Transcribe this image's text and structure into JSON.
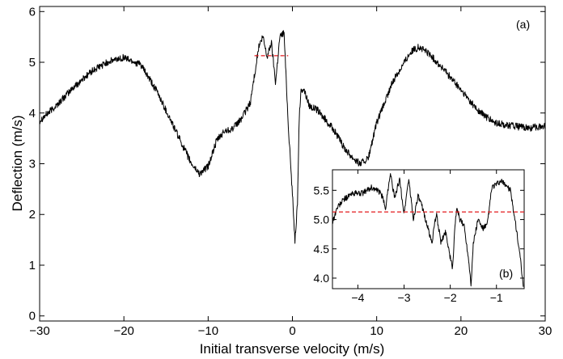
{
  "chart_data": [
    {
      "panel": "main",
      "type": "line",
      "label": "(a)",
      "xlabel": "Initial transverse velocity (m/s)",
      "ylabel": "Deflection (m/s)",
      "xlim": [
        -30,
        30
      ],
      "ylim": [
        -0.1,
        6.1
      ],
      "xticks": [
        -30,
        -20,
        -10,
        0,
        10,
        20,
        30
      ],
      "yticks": [
        0,
        1,
        2,
        3,
        4,
        5,
        6
      ],
      "grid": false,
      "noise": 0.07,
      "reference_line": {
        "y": 5.13,
        "x_range": [
          -4.5,
          -0.5
        ],
        "color": "#e31a1c",
        "style": "dashed"
      },
      "x": [
        -30,
        -28,
        -26,
        -24,
        -22,
        -20,
        -18,
        -16,
        -14,
        -12,
        -11,
        -10,
        -9,
        -8,
        -7,
        -6,
        -5,
        -4,
        -3.5,
        -3,
        -2.5,
        -2,
        -1.5,
        -1,
        -0.5,
        0,
        0.3,
        0.6,
        0.8,
        1,
        1.3,
        2,
        3,
        4,
        5,
        6,
        7,
        8,
        9,
        10,
        12,
        14,
        15,
        16,
        18,
        20,
        22,
        24,
        26,
        28,
        30
      ],
      "y": [
        3.85,
        4.15,
        4.5,
        4.8,
        5.0,
        5.1,
        4.95,
        4.4,
        3.7,
        3.0,
        2.8,
        2.95,
        3.45,
        3.65,
        3.7,
        3.9,
        4.2,
        5.3,
        5.5,
        5.1,
        5.4,
        4.6,
        5.5,
        5.6,
        3.8,
        2.4,
        1.5,
        2.2,
        3.9,
        4.4,
        4.5,
        4.15,
        4.05,
        3.85,
        3.65,
        3.35,
        3.15,
        3.0,
        3.1,
        3.8,
        4.65,
        5.2,
        5.3,
        5.2,
        4.85,
        4.45,
        4.05,
        3.8,
        3.75,
        3.7,
        3.75
      ]
    },
    {
      "panel": "inset",
      "type": "line",
      "label": "(b)",
      "xlim": [
        -4.55,
        -0.4
      ],
      "ylim": [
        3.82,
        5.85
      ],
      "xticks": [
        -4,
        -3,
        -2,
        -1
      ],
      "yticks": [
        4.0,
        4.5,
        5.0,
        5.5
      ],
      "ytick_labels": [
        "4.0",
        "4.5",
        "5.0",
        "5.5"
      ],
      "grid": false,
      "noise": 0.05,
      "reference_line": {
        "y": 5.13,
        "color": "#e31a1c",
        "style": "dashed"
      },
      "x": [
        -4.55,
        -4.45,
        -4.3,
        -4.1,
        -3.9,
        -3.7,
        -3.5,
        -3.4,
        -3.3,
        -3.2,
        -3.1,
        -3.0,
        -2.9,
        -2.8,
        -2.7,
        -2.6,
        -2.5,
        -2.4,
        -2.3,
        -2.2,
        -2.1,
        -2.0,
        -1.95,
        -1.9,
        -1.85,
        -1.8,
        -1.7,
        -1.6,
        -1.55,
        -1.5,
        -1.4,
        -1.3,
        -1.2,
        -1.1,
        -1.0,
        -0.9,
        -0.8,
        -0.7,
        -0.6,
        -0.5,
        -0.42
      ],
      "y": [
        4.95,
        5.2,
        5.35,
        5.45,
        5.45,
        5.55,
        5.45,
        5.2,
        5.8,
        5.35,
        5.7,
        5.1,
        5.7,
        5.0,
        5.4,
        5.2,
        4.9,
        4.6,
        5.1,
        4.6,
        4.8,
        4.35,
        4.15,
        4.9,
        5.2,
        5.0,
        4.9,
        4.3,
        3.9,
        4.6,
        5.0,
        4.85,
        4.9,
        5.55,
        5.6,
        5.65,
        5.6,
        5.5,
        5.0,
        4.45,
        3.85
      ]
    }
  ]
}
